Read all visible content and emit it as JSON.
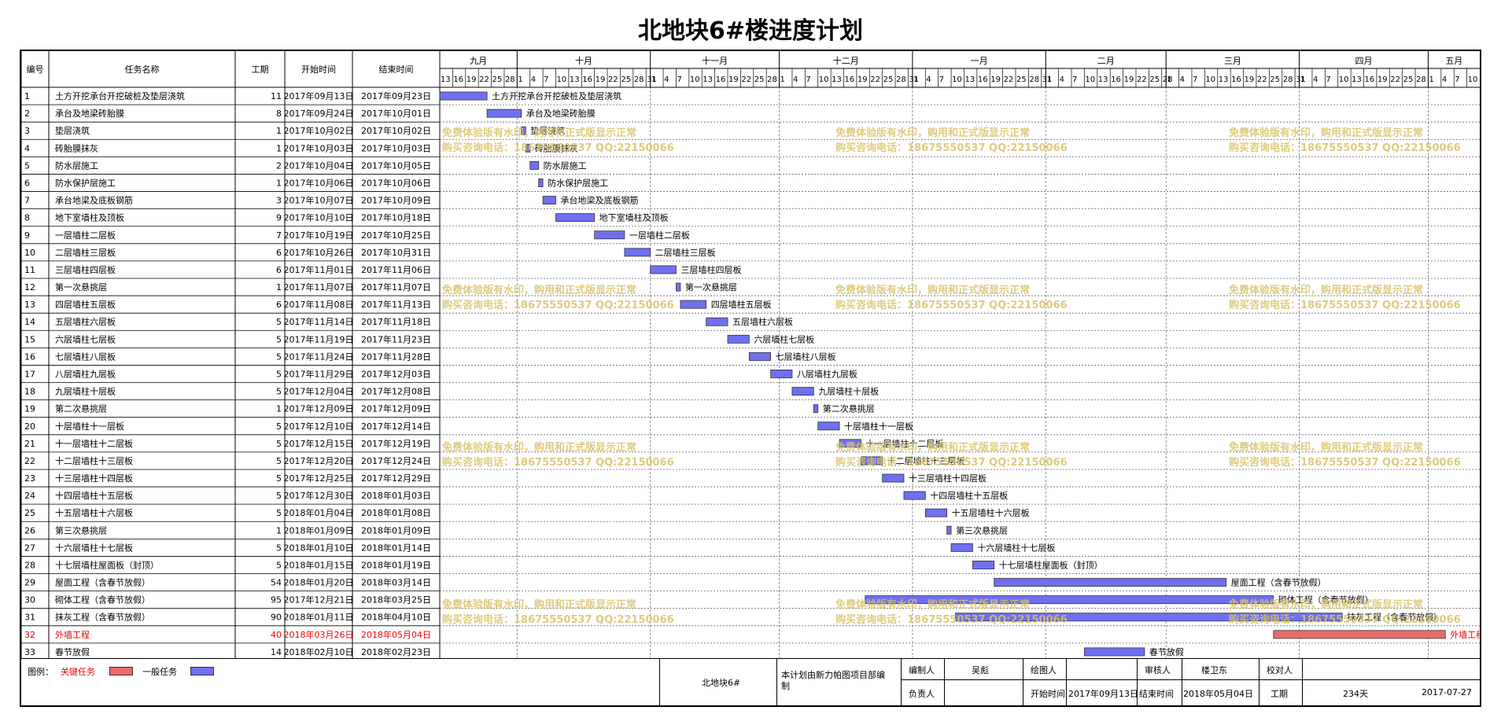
{
  "title": "北地块6#楼进度计划",
  "columns": [
    "编号",
    "任务名称",
    "工期",
    "开始时间",
    "结束时间"
  ],
  "timeline": {
    "start": "2017-09-13",
    "day_step": 3,
    "months": [
      {
        "label": "九月",
        "start": "2017-09-13",
        "end": "2017-10-01"
      },
      {
        "label": "十月",
        "start": "2017-10-01",
        "end": "2017-11-01"
      },
      {
        "label": "十一月",
        "start": "2017-11-01",
        "end": "2017-12-01"
      },
      {
        "label": "十二月",
        "start": "2017-12-01",
        "end": "2018-01-01"
      },
      {
        "label": "一月",
        "start": "2018-01-01",
        "end": "2018-02-01"
      },
      {
        "label": "二月",
        "start": "2018-02-01",
        "end": "2018-03-01"
      },
      {
        "label": "三月",
        "start": "2018-03-01",
        "end": "2018-04-01"
      },
      {
        "label": "四月",
        "start": "2018-04-01",
        "end": "2018-05-01"
      },
      {
        "label": "五月",
        "start": "2018-05-01",
        "end": "2018-05-13"
      }
    ]
  },
  "chart_data": {
    "type": "gantt",
    "title": "北地块6#楼进度计划",
    "x_range": [
      "2017-09-13",
      "2018-05-13"
    ],
    "colors": {
      "key": "#ee6a6a",
      "normal": "#6f6ff0"
    },
    "tasks": [
      {
        "id": "1",
        "name": "土方开挖承台开挖破桩及垫层浇筑",
        "duration": 11,
        "start": "2017年09月13日",
        "end": "2017年09月23日",
        "s": "2017-09-13",
        "e": "2017-09-23",
        "critical": false
      },
      {
        "id": "2",
        "name": "承台及地梁砖胎膜",
        "duration": 8,
        "start": "2017年09月24日",
        "end": "2017年10月01日",
        "s": "2017-09-24",
        "e": "2017-10-01",
        "critical": false
      },
      {
        "id": "3",
        "name": "垫层浇筑",
        "duration": 1,
        "start": "2017年10月02日",
        "end": "2017年10月02日",
        "s": "2017-10-02",
        "e": "2017-10-02",
        "critical": false
      },
      {
        "id": "4",
        "name": "砖胎膜抹灰",
        "duration": 1,
        "start": "2017年10月03日",
        "end": "2017年10月03日",
        "s": "2017-10-03",
        "e": "2017-10-03",
        "critical": false
      },
      {
        "id": "5",
        "name": "防水层施工",
        "duration": 2,
        "start": "2017年10月04日",
        "end": "2017年10月05日",
        "s": "2017-10-04",
        "e": "2017-10-05",
        "critical": false
      },
      {
        "id": "6",
        "name": "防水保护层施工",
        "duration": 1,
        "start": "2017年10月06日",
        "end": "2017年10月06日",
        "s": "2017-10-06",
        "e": "2017-10-06",
        "critical": false
      },
      {
        "id": "7",
        "name": "承台地梁及底板钢筋",
        "duration": 3,
        "start": "2017年10月07日",
        "end": "2017年10月09日",
        "s": "2017-10-07",
        "e": "2017-10-09",
        "critical": false
      },
      {
        "id": "8",
        "name": "地下室墙柱及顶板",
        "duration": 9,
        "start": "2017年10月10日",
        "end": "2017年10月18日",
        "s": "2017-10-10",
        "e": "2017-10-18",
        "critical": false
      },
      {
        "id": "9",
        "name": "一层墙柱二层板",
        "duration": 7,
        "start": "2017年10月19日",
        "end": "2017年10月25日",
        "s": "2017-10-19",
        "e": "2017-10-25",
        "critical": false
      },
      {
        "id": "10",
        "name": "二层墙柱三层板",
        "duration": 6,
        "start": "2017年10月26日",
        "end": "2017年10月31日",
        "s": "2017-10-26",
        "e": "2017-10-31",
        "critical": false
      },
      {
        "id": "11",
        "name": "三层墙柱四层板",
        "duration": 6,
        "start": "2017年11月01日",
        "end": "2017年11月06日",
        "s": "2017-11-01",
        "e": "2017-11-06",
        "critical": false
      },
      {
        "id": "12",
        "name": "第一次悬挑层",
        "duration": 1,
        "start": "2017年11月07日",
        "end": "2017年11月07日",
        "s": "2017-11-07",
        "e": "2017-11-07",
        "critical": false
      },
      {
        "id": "13",
        "name": "四层墙柱五层板",
        "duration": 6,
        "start": "2017年11月08日",
        "end": "2017年11月13日",
        "s": "2017-11-08",
        "e": "2017-11-13",
        "critical": false
      },
      {
        "id": "14",
        "name": "五层墙柱六层板",
        "duration": 5,
        "start": "2017年11月14日",
        "end": "2017年11月18日",
        "s": "2017-11-14",
        "e": "2017-11-18",
        "critical": false
      },
      {
        "id": "15",
        "name": "六层墙柱七层板",
        "duration": 5,
        "start": "2017年11月19日",
        "end": "2017年11月23日",
        "s": "2017-11-19",
        "e": "2017-11-23",
        "critical": false
      },
      {
        "id": "16",
        "name": "七层墙柱八层板",
        "duration": 5,
        "start": "2017年11月24日",
        "end": "2017年11月28日",
        "s": "2017-11-24",
        "e": "2017-11-28",
        "critical": false
      },
      {
        "id": "17",
        "name": "八层墙柱九层板",
        "duration": 5,
        "start": "2017年11月29日",
        "end": "2017年12月03日",
        "s": "2017-11-29",
        "e": "2017-12-03",
        "critical": false
      },
      {
        "id": "18",
        "name": "九层墙柱十层板",
        "duration": 5,
        "start": "2017年12月04日",
        "end": "2017年12月08日",
        "s": "2017-12-04",
        "e": "2017-12-08",
        "critical": false
      },
      {
        "id": "19",
        "name": "第二次悬挑层",
        "duration": 1,
        "start": "2017年12月09日",
        "end": "2017年12月09日",
        "s": "2017-12-09",
        "e": "2017-12-09",
        "critical": false
      },
      {
        "id": "20",
        "name": "十层墙柱十一层板",
        "duration": 5,
        "start": "2017年12月10日",
        "end": "2017年12月14日",
        "s": "2017-12-10",
        "e": "2017-12-14",
        "critical": false
      },
      {
        "id": "21",
        "name": "十一层墙柱十二层板",
        "duration": 5,
        "start": "2017年12月15日",
        "end": "2017年12月19日",
        "s": "2017-12-15",
        "e": "2017-12-19",
        "critical": false
      },
      {
        "id": "22",
        "name": "十二层墙柱十三层板",
        "duration": 5,
        "start": "2017年12月20日",
        "end": "2017年12月24日",
        "s": "2017-12-20",
        "e": "2017-12-24",
        "critical": false
      },
      {
        "id": "23",
        "name": "十三层墙柱十四层板",
        "duration": 5,
        "start": "2017年12月25日",
        "end": "2017年12月29日",
        "s": "2017-12-25",
        "e": "2017-12-29",
        "critical": false
      },
      {
        "id": "24",
        "name": "十四层墙柱十五层板",
        "duration": 5,
        "start": "2017年12月30日",
        "end": "2018年01月03日",
        "s": "2017-12-30",
        "e": "2018-01-03",
        "critical": false
      },
      {
        "id": "25",
        "name": "十五层墙柱十六层板",
        "duration": 5,
        "start": "2018年01月04日",
        "end": "2018年01月08日",
        "s": "2018-01-04",
        "e": "2018-01-08",
        "critical": false
      },
      {
        "id": "26",
        "name": "第三次悬挑层",
        "duration": 1,
        "start": "2018年01月09日",
        "end": "2018年01月09日",
        "s": "2018-01-09",
        "e": "2018-01-09",
        "critical": false
      },
      {
        "id": "27",
        "name": "十六层墙柱十七层板",
        "duration": 5,
        "start": "2018年01月10日",
        "end": "2018年01月14日",
        "s": "2018-01-10",
        "e": "2018-01-14",
        "critical": false
      },
      {
        "id": "28",
        "name": "十七层墙柱屋面板（封顶）",
        "duration": 5,
        "start": "2018年01月15日",
        "end": "2018年01月19日",
        "s": "2018-01-15",
        "e": "2018-01-19",
        "critical": false
      },
      {
        "id": "29",
        "name": "屋面工程（含春节放假）",
        "duration": 54,
        "start": "2018年01月20日",
        "end": "2018年03月14日",
        "s": "2018-01-20",
        "e": "2018-03-14",
        "critical": false
      },
      {
        "id": "30",
        "name": "砌体工程（含春节放假）",
        "duration": 95,
        "start": "2017年12月21日",
        "end": "2018年03月25日",
        "s": "2017-12-21",
        "e": "2018-03-25",
        "critical": false
      },
      {
        "id": "31",
        "name": "抹灰工程（含春节放假）",
        "duration": 90,
        "start": "2018年01月11日",
        "end": "2018年04月10日",
        "s": "2018-01-11",
        "e": "2018-04-10",
        "critical": false
      },
      {
        "id": "32",
        "name": "外墙工程",
        "duration": 40,
        "start": "2018年03月26日",
        "end": "2018年05月04日",
        "s": "2018-03-26",
        "e": "2018-05-04",
        "critical": true
      },
      {
        "id": "33",
        "name": "春节放假",
        "duration": 14,
        "start": "2018年02月10日",
        "end": "2018年02月23日",
        "s": "2018-02-10",
        "e": "2018-02-23",
        "critical": false
      }
    ]
  },
  "watermark": {
    "line1": "免费体验版有水印，购用和正式版显示正常",
    "line2": "购买咨询电话：18675550537 QQ:22150066"
  },
  "legend": {
    "label": "图例：",
    "key": "关键任务",
    "normal": "一般任务"
  },
  "footer": {
    "project": "北地块6#",
    "note": "本计划由新力帕图项目部编制",
    "prepared_label": "编制人",
    "prepared_value": "吴彪",
    "drawn_label": "绘图人",
    "drawn_value": "",
    "reviewed_label": "审核人",
    "reviewed_value": "楼卫东",
    "checked_label": "校对人",
    "checked_value": "",
    "responsible_label": "负责人",
    "responsible_value": "",
    "start_label": "开始时间",
    "start_value": "2017年09月13日",
    "end_label": "结束时间",
    "end_value": "2018年05月04日",
    "duration_label": "工期",
    "duration_value": "234天",
    "date_value": "2017-07-27"
  }
}
